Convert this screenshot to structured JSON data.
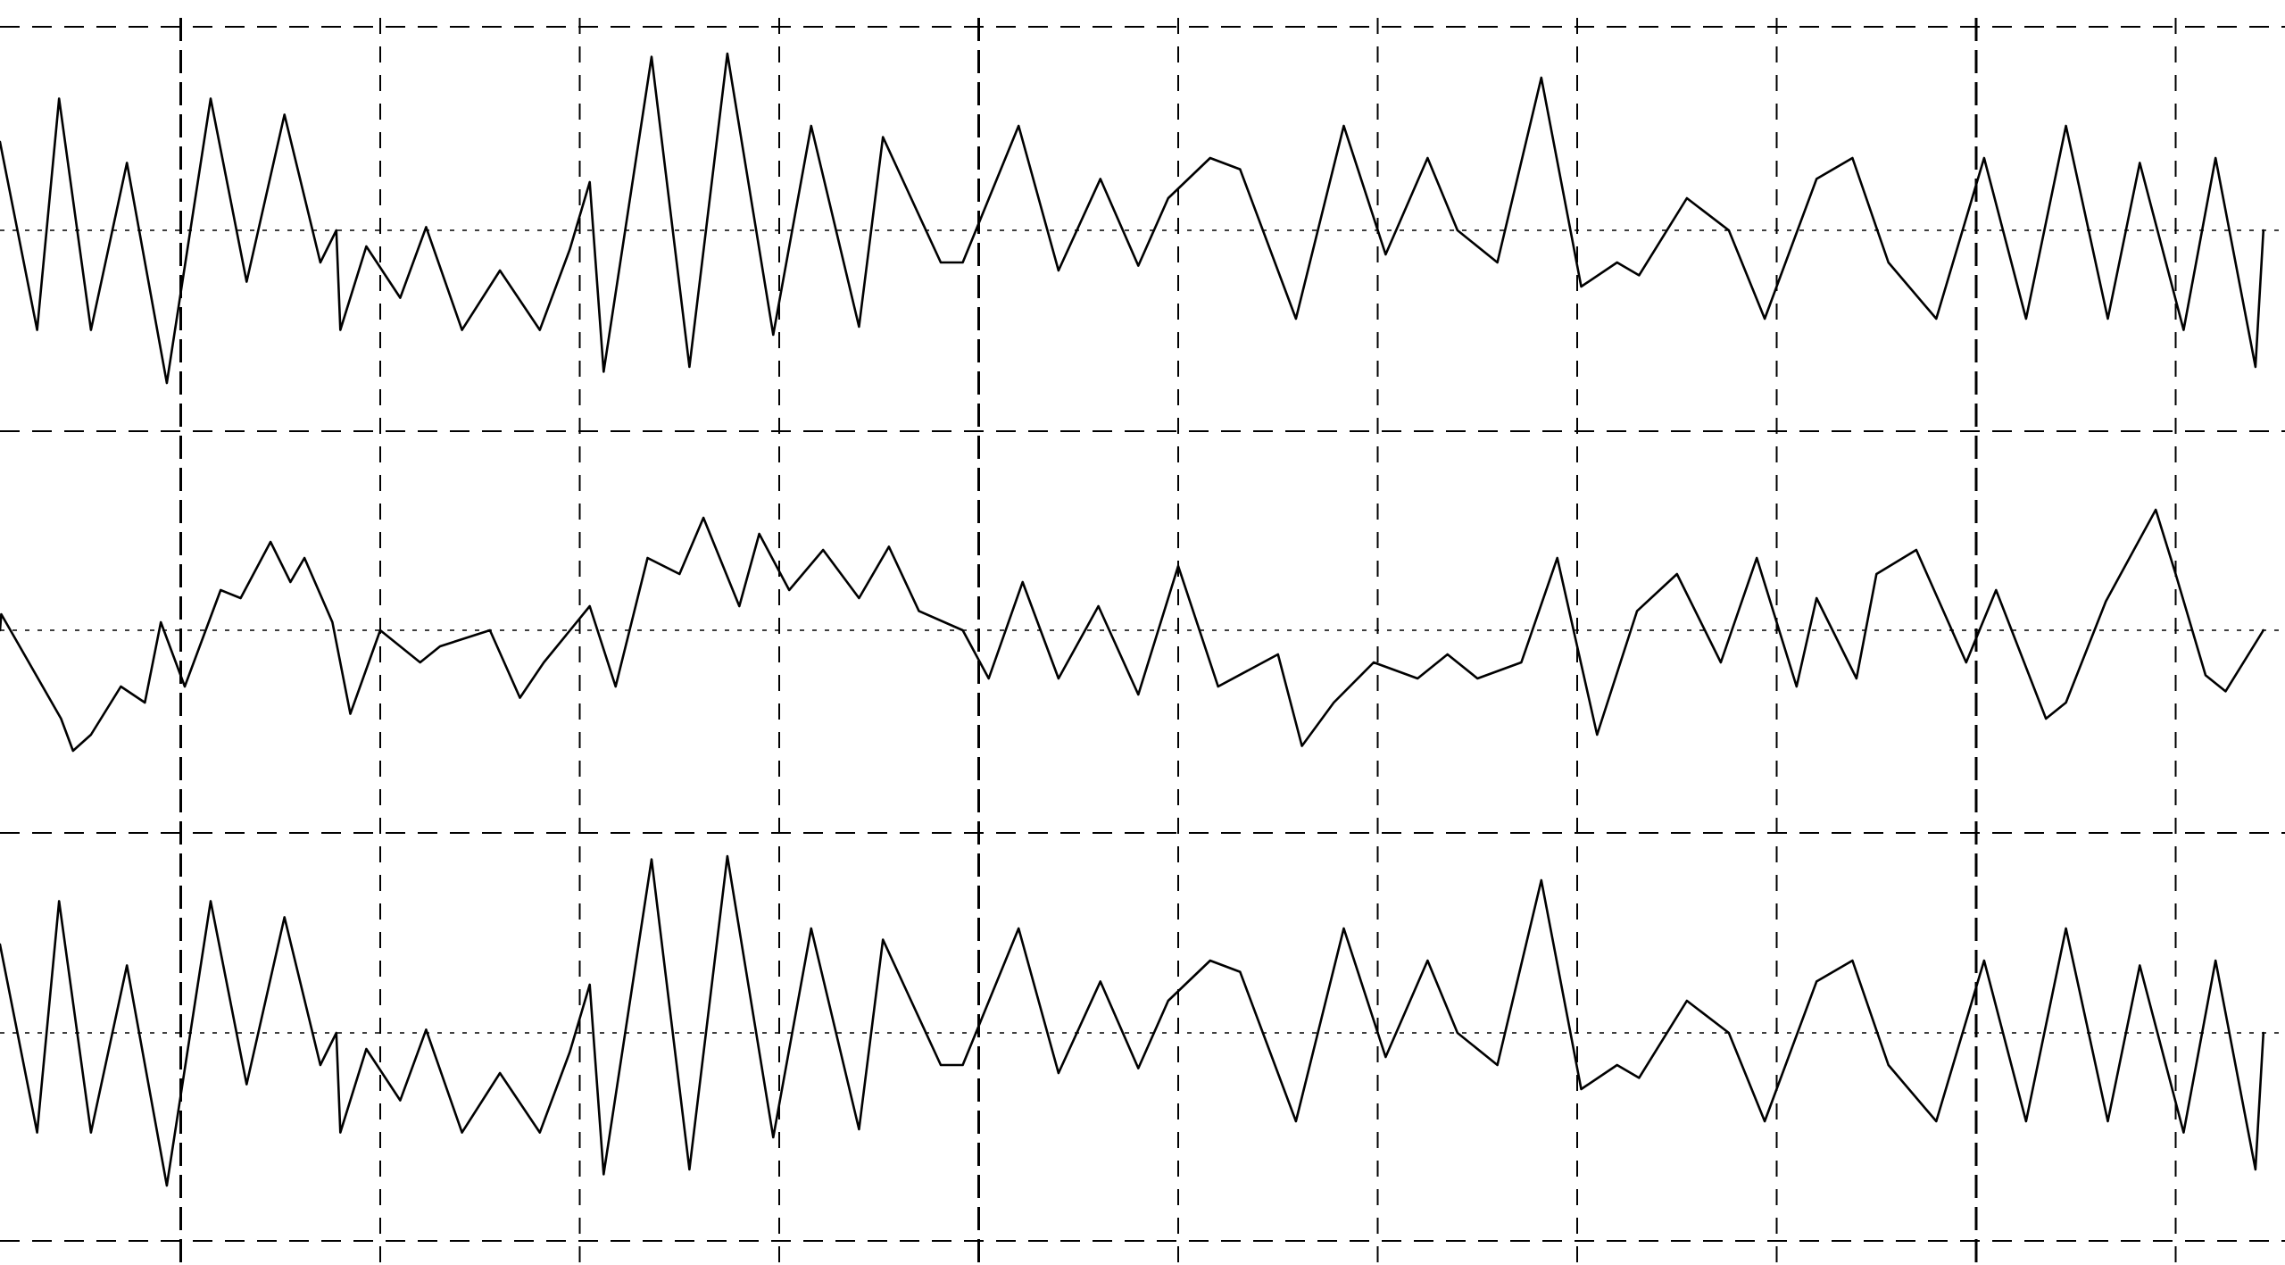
{
  "chart_data": {
    "type": "line",
    "x_unit": "grid_division",
    "x_range": [
      0,
      11.44
    ],
    "y_range": [
      -1,
      1
    ],
    "grid": true,
    "major_divisions": [
      1,
      5,
      10
    ],
    "series": [
      {
        "x": [
          0,
          0.28,
          0.39,
          0.55,
          0.73,
          0.93,
          1.15,
          1.33,
          1.52,
          1.7,
          1.78,
          1.8,
          1.93,
          2.1,
          2.23,
          2.41,
          2.6,
          2.8,
          2.95,
          3.05,
          3.12,
          3.36,
          3.55,
          3.74,
          3.97,
          4.16,
          4.4,
          4.52,
          4.81,
          4.92,
          5.2,
          5.4,
          5.61,
          5.8,
          5.95,
          6.16,
          6.31,
          6.59,
          6.83,
          7.04,
          7.25,
          7.4,
          7.6,
          7.82,
          8.02,
          8.2,
          8.31,
          8.55,
          8.76,
          8.94,
          9.2,
          9.38,
          9.56,
          9.8,
          10.04,
          10.25,
          10.45,
          10.66,
          10.82,
          11.04,
          11.2,
          11.4,
          11.44
        ],
        "y": [
          0.55,
          -0.62,
          0.82,
          -0.62,
          0.42,
          -0.95,
          0.82,
          -0.32,
          0.72,
          -0.2,
          0,
          -0.62,
          -0.1,
          -0.42,
          0.02,
          -0.62,
          -0.25,
          -0.62,
          -0.12,
          0.3,
          -0.88,
          1.08,
          -0.85,
          1.1,
          -0.65,
          0.65,
          -0.6,
          0.58,
          -0.2,
          -0.2,
          0.65,
          -0.25,
          0.32,
          -0.22,
          0.2,
          0.45,
          0.38,
          -0.55,
          0.65,
          -0.15,
          0.45,
          0.0,
          -0.2,
          0.95,
          -0.35,
          -0.2,
          -0.28,
          0.2,
          0.0,
          -0.55,
          0.32,
          0.45,
          -0.2,
          -0.55,
          0.45,
          -0.55,
          0.65,
          -0.55,
          0.42,
          -0.62,
          0.45,
          -0.85,
          0.0
        ]
      },
      {
        "x": [
          0,
          0.1,
          0.4,
          0.46,
          0.55,
          0.7,
          0.82,
          0.9,
          1.02,
          1.2,
          1.3,
          1.45,
          1.55,
          1.62,
          1.76,
          1.85,
          2.0,
          2.2,
          2.3,
          2.55,
          2.7,
          2.82,
          3.05,
          3.18,
          3.34,
          3.5,
          3.62,
          3.8,
          3.9,
          4.05,
          4.22,
          4.4,
          4.55,
          4.7,
          4.92,
          5.05,
          5.22,
          5.4,
          5.6,
          5.8,
          6.0,
          6.2,
          6.5,
          6.62,
          6.78,
          6.98,
          7.2,
          7.35,
          7.5,
          7.72,
          7.9,
          8.1,
          8.3,
          8.5,
          8.72,
          8.9,
          9.1,
          9.2,
          9.4,
          9.5,
          9.7,
          9.95,
          10.1,
          10.35,
          10.45,
          10.65,
          10.9,
          11.0,
          11.15,
          11.25,
          11.44
        ],
        "y": [
          0,
          0.1,
          -0.55,
          -0.75,
          -0.65,
          -0.35,
          -0.45,
          0.05,
          -0.35,
          0.25,
          0.2,
          0.55,
          0.3,
          0.45,
          0.05,
          -0.52,
          0.0,
          -0.2,
          -0.1,
          0.0,
          -0.42,
          -0.2,
          0.15,
          -0.35,
          0.45,
          0.35,
          0.7,
          0.15,
          0.6,
          0.25,
          0.5,
          0.2,
          0.52,
          0.12,
          0.0,
          -0.3,
          0.3,
          -0.3,
          0.15,
          -0.4,
          0.4,
          -0.35,
          -0.15,
          -0.72,
          -0.45,
          -0.2,
          -0.3,
          -0.15,
          -0.3,
          -0.2,
          0.45,
          -0.65,
          0.12,
          0.35,
          -0.2,
          0.45,
          -0.35,
          0.2,
          -0.3,
          0.35,
          0.5,
          -0.2,
          0.25,
          -0.55,
          -0.45,
          0.18,
          0.75,
          0.35,
          -0.28,
          -0.38,
          0.0
        ]
      },
      {
        "x": [
          0,
          0.28,
          0.39,
          0.55,
          0.73,
          0.93,
          1.15,
          1.33,
          1.52,
          1.7,
          1.78,
          1.8,
          1.93,
          2.1,
          2.23,
          2.41,
          2.6,
          2.8,
          2.95,
          3.05,
          3.12,
          3.36,
          3.55,
          3.74,
          3.97,
          4.16,
          4.4,
          4.52,
          4.81,
          4.92,
          5.2,
          5.4,
          5.61,
          5.8,
          5.95,
          6.16,
          6.31,
          6.59,
          6.83,
          7.04,
          7.25,
          7.4,
          7.6,
          7.82,
          8.02,
          8.2,
          8.31,
          8.55,
          8.76,
          8.94,
          9.2,
          9.38,
          9.56,
          9.8,
          10.04,
          10.25,
          10.45,
          10.66,
          10.82,
          11.04,
          11.2,
          11.4,
          11.44
        ],
        "y": [
          0.55,
          -0.62,
          0.82,
          -0.62,
          0.42,
          -0.95,
          0.82,
          -0.32,
          0.72,
          -0.2,
          0,
          -0.62,
          -0.1,
          -0.42,
          0.02,
          -0.62,
          -0.25,
          -0.62,
          -0.12,
          0.3,
          -0.88,
          1.08,
          -0.85,
          1.1,
          -0.65,
          0.65,
          -0.6,
          0.58,
          -0.2,
          -0.2,
          0.65,
          -0.25,
          0.32,
          -0.22,
          0.2,
          0.45,
          0.38,
          -0.55,
          0.65,
          -0.15,
          0.45,
          0.0,
          -0.2,
          0.95,
          -0.35,
          -0.2,
          -0.28,
          0.2,
          0.0,
          -0.55,
          0.32,
          0.45,
          -0.2,
          -0.55,
          0.45,
          -0.55,
          0.65,
          -0.55,
          0.42,
          -0.62,
          0.45,
          -0.85,
          0.0
        ]
      }
    ]
  }
}
